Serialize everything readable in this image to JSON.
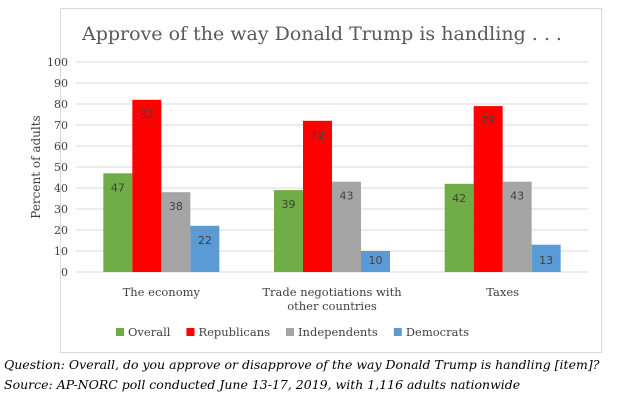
{
  "chart_data": {
    "type": "bar",
    "title": "Approve of the way Donald Trump is handling . . .",
    "ylabel": "Percent of adults",
    "xlabel": "",
    "ylim": [
      0,
      100
    ],
    "yticks": [
      0,
      10,
      20,
      30,
      40,
      50,
      60,
      70,
      80,
      90,
      100
    ],
    "grid": true,
    "legend_position": "bottom",
    "categories": [
      [
        "The economy"
      ],
      [
        "Trade negotiations with",
        "other countries"
      ],
      [
        "Taxes"
      ]
    ],
    "series": [
      {
        "name": "Overall",
        "color": "#70ad47",
        "values": [
          47,
          39,
          42
        ]
      },
      {
        "name": "Republicans",
        "color": "#ff0000",
        "values": [
          82,
          72,
          79
        ]
      },
      {
        "name": "Independents",
        "color": "#a5a5a5",
        "values": [
          38,
          43,
          43
        ]
      },
      {
        "name": "Democrats",
        "color": "#5b9bd5",
        "values": [
          22,
          10,
          13
        ]
      }
    ]
  },
  "notes": {
    "question": "Question: Overall, do you approve or disapprove of the way Donald Trump is handling [item]?",
    "source": "Source: AP-NORC poll conducted June 13-17, 2019, with 1,116 adults nationwide"
  }
}
